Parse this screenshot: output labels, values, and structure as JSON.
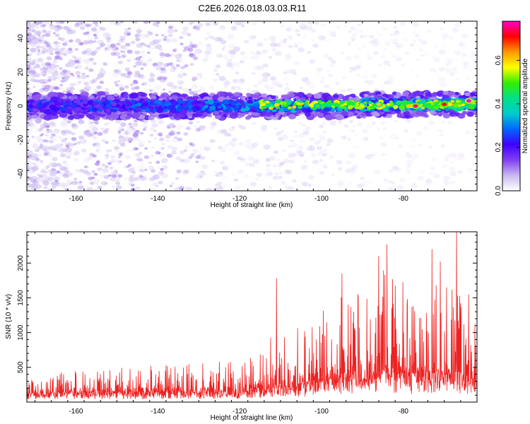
{
  "title": "C2E6.2026.018.03.03.R11",
  "chart_data": [
    {
      "type": "heatmap",
      "xlabel": "Height of straight line (km)",
      "ylabel": "Frequency (Hz)",
      "xlim": [
        -172,
        -62
      ],
      "ylim": [
        -50,
        50
      ],
      "x_ticks": [
        -160,
        -140,
        -120,
        -100,
        -80
      ],
      "y_ticks": [
        -40,
        -20,
        0,
        20,
        40
      ],
      "grid": false,
      "band_center_hz": 0,
      "band_halfwidth_hz": 4,
      "hotspots": [
        {
          "x": -77,
          "y": 0,
          "value": 0.75
        },
        {
          "x": -70,
          "y": 1,
          "value": 0.72
        },
        {
          "x": -64,
          "y": 3,
          "value": 0.78
        },
        {
          "x": -86,
          "y": 1,
          "value": 0.6
        },
        {
          "x": -101,
          "y": 0,
          "value": 0.5
        }
      ],
      "colorbar": {
        "label": "Normalized spectral amplitude",
        "ticks": [
          0.0,
          0.2,
          0.4,
          0.6
        ],
        "range": [
          0,
          0.78
        ],
        "colormap": [
          "#ffffff",
          "#c9b8f0",
          "#7f3ff0",
          "#4000ff",
          "#0066ff",
          "#00cccc",
          "#00e08a",
          "#33ee00",
          "#ffff00",
          "#ff9900",
          "#ff0000",
          "#ff00cc"
        ]
      }
    },
    {
      "type": "line",
      "xlabel": "Height of straight line (km)",
      "ylabel": "SNR (10 * v/v)",
      "xlim": [
        -172,
        -62
      ],
      "ylim": [
        0,
        2450
      ],
      "x_ticks": [
        -160,
        -140,
        -120,
        -100,
        -80
      ],
      "y_ticks": [
        500,
        1000,
        1500,
        2000
      ],
      "grid": false,
      "color": "#ee2222",
      "envelope": [
        {
          "x": -172,
          "base": 180,
          "peak": 350
        },
        {
          "x": -160,
          "base": 200,
          "peak": 500
        },
        {
          "x": -140,
          "base": 210,
          "peak": 550
        },
        {
          "x": -120,
          "base": 230,
          "peak": 620
        },
        {
          "x": -112,
          "base": 320,
          "peak": 1000
        },
        {
          "x": -104,
          "base": 380,
          "peak": 1100
        },
        {
          "x": -96,
          "base": 520,
          "peak": 1500
        },
        {
          "x": -88,
          "base": 600,
          "peak": 1600
        },
        {
          "x": -84,
          "base": 650,
          "peak": 2000
        },
        {
          "x": -76,
          "base": 550,
          "peak": 1700
        },
        {
          "x": -68,
          "base": 600,
          "peak": 2000
        },
        {
          "x": -62,
          "base": 500,
          "peak": 1200
        }
      ],
      "spikes": [
        {
          "x": -111,
          "y": 1780
        },
        {
          "x": -95,
          "y": 1850
        },
        {
          "x": -91,
          "y": 1500
        },
        {
          "x": -86,
          "y": 2100
        },
        {
          "x": -84,
          "y": 2270
        },
        {
          "x": -79,
          "y": 1480
        },
        {
          "x": -73,
          "y": 2200
        },
        {
          "x": -71,
          "y": 2020
        },
        {
          "x": -67,
          "y": 2450
        },
        {
          "x": -64,
          "y": 1550
        }
      ]
    }
  ]
}
